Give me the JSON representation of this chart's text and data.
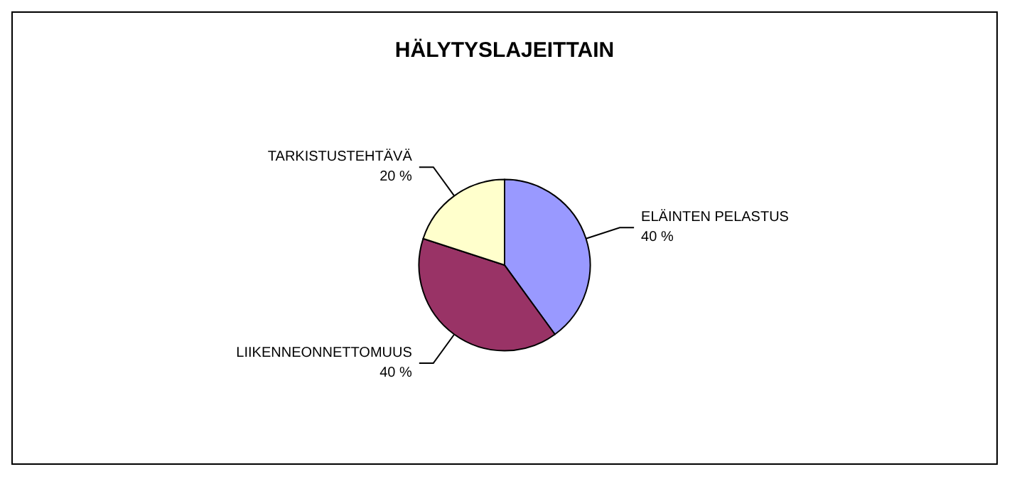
{
  "chart_data": {
    "type": "pie",
    "title": "HÄLYTYSLAJEITTAIN",
    "categories": [
      "ELÄINTEN PELASTUS",
      "LIIKENNEONNETTOMUUS",
      "TARKISTUSTEHTÄVÄ"
    ],
    "values": [
      40,
      40,
      20
    ],
    "colors": [
      "#9999ff",
      "#993366",
      "#ffffcc"
    ],
    "value_labels": [
      "40 %",
      "40 %",
      "20 %"
    ],
    "legend": false
  }
}
